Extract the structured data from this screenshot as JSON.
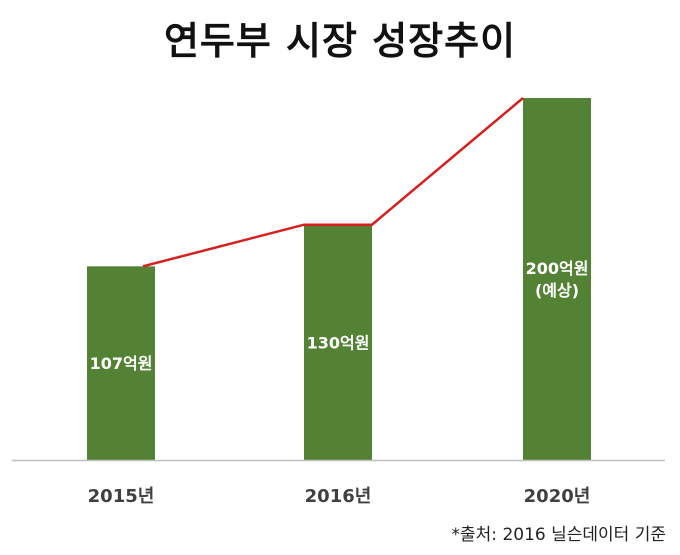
{
  "colors": {
    "bar": "#548235",
    "trend_line": "#d61f1f",
    "axis": "#bfbfbf",
    "label_text": "#ffffff",
    "tick_text": "#404040"
  },
  "chart_data": {
    "type": "bar",
    "title": "연두부 시장 성장추이",
    "categories": [
      "2015년",
      "2016년",
      "2020년"
    ],
    "values": [
      107,
      130,
      200
    ],
    "data_labels": [
      [
        "107억원"
      ],
      [
        "130억원"
      ],
      [
        "200억원",
        "(예상)"
      ]
    ],
    "trend_line": true,
    "ylim": [
      0,
      200
    ],
    "grid": false,
    "xlabel": "",
    "ylabel": ""
  },
  "source": "*출처: 2016 닐슨데이터 기준"
}
